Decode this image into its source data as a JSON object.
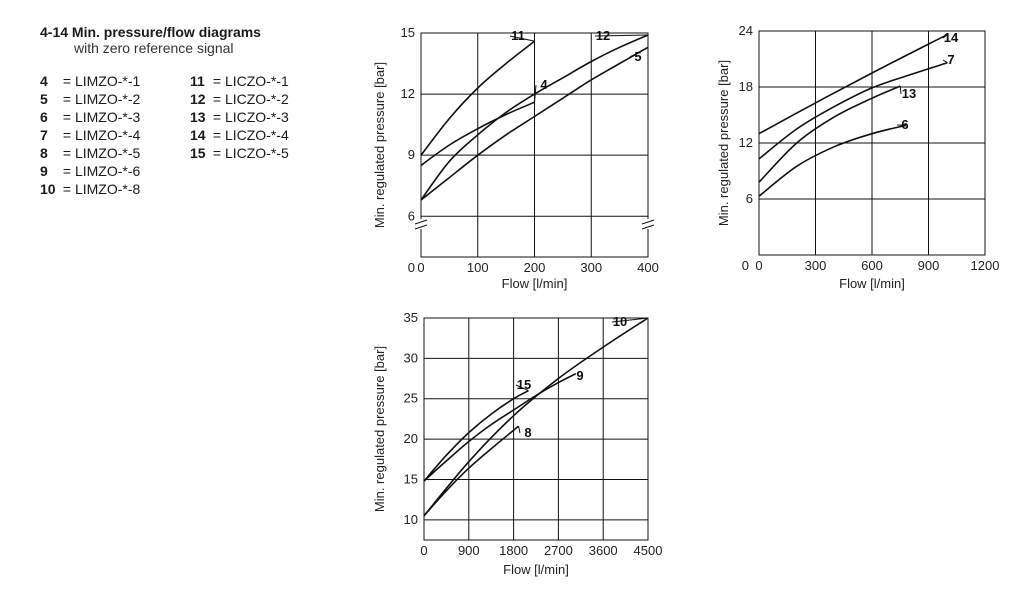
{
  "header": {
    "title": "4-14 Min. pressure/flow diagrams",
    "subtitle": "with zero reference signal"
  },
  "legend": {
    "items": [
      {
        "num": "4",
        "label": "= LIMZO-*-1"
      },
      {
        "num": "11",
        "label": "= LICZO-*-1"
      },
      {
        "num": "5",
        "label": "= LIMZO-*-2"
      },
      {
        "num": "12",
        "label": "= LICZO-*-2"
      },
      {
        "num": "6",
        "label": "= LIMZO-*-3"
      },
      {
        "num": "13",
        "label": "= LICZO-*-3"
      },
      {
        "num": "7",
        "label": "= LIMZO-*-4"
      },
      {
        "num": "14",
        "label": "= LICZO-*-4"
      },
      {
        "num": "8",
        "label": "= LIMZO-*-5"
      },
      {
        "num": "15",
        "label": "= LICZO-*-5"
      },
      {
        "num": "9",
        "label": "= LIMZO-*-6"
      },
      {
        "num": "",
        "label": ""
      },
      {
        "num": "10",
        "label": "= LIMZO-*-8"
      }
    ]
  },
  "chart_data": [
    {
      "type": "line",
      "xlabel": "Flow [l/min]",
      "ylabel": "Min. regulated pressure [bar]",
      "xlim": [
        0,
        400
      ],
      "ylim": [
        6,
        15
      ],
      "xticks": [
        "0",
        "100",
        "200",
        "300",
        "400"
      ],
      "yticks": [
        "6",
        "9",
        "12",
        "15"
      ],
      "axis_break": true,
      "grid": true,
      "series": [
        {
          "name": "11",
          "x": [
            0,
            50,
            100,
            150,
            200
          ],
          "y": [
            9.0,
            10.8,
            12.3,
            13.5,
            14.6
          ]
        },
        {
          "name": "4",
          "x": [
            0,
            50,
            100,
            150,
            200
          ],
          "y": [
            8.5,
            9.5,
            10.3,
            11.0,
            11.6
          ]
        },
        {
          "name": "12",
          "x": [
            0,
            50,
            100,
            150,
            200,
            250,
            300,
            350,
            400
          ],
          "y": [
            6.8,
            8.7,
            10.0,
            11.1,
            12.0,
            12.8,
            13.6,
            14.3,
            14.9
          ]
        },
        {
          "name": "5",
          "x": [
            0,
            50,
            100,
            150,
            200,
            250,
            300,
            350,
            400
          ],
          "y": [
            6.8,
            7.9,
            9.0,
            10.0,
            10.9,
            11.8,
            12.7,
            13.5,
            14.3
          ]
        }
      ]
    },
    {
      "type": "line",
      "xlabel": "Flow [l/min]",
      "ylabel": "Min. regulated pressure [bar]",
      "xlim": [
        0,
        1200
      ],
      "ylim": [
        0,
        24
      ],
      "xticks": [
        "0",
        "300",
        "600",
        "900",
        "1200"
      ],
      "yticks": [
        "6",
        "12",
        "18",
        "24"
      ],
      "grid": true,
      "series": [
        {
          "name": "14",
          "x": [
            0,
            300,
            600,
            900,
            1000
          ],
          "y": [
            13.0,
            16.3,
            19.5,
            22.6,
            23.6
          ]
        },
        {
          "name": "7",
          "x": [
            0,
            200,
            400,
            600,
            800,
            1000
          ],
          "y": [
            10.3,
            13.5,
            15.9,
            17.9,
            19.3,
            20.6
          ]
        },
        {
          "name": "13",
          "x": [
            0,
            200,
            400,
            600,
            750
          ],
          "y": [
            7.8,
            12.0,
            14.8,
            16.8,
            18.1
          ]
        },
        {
          "name": "6",
          "x": [
            0,
            200,
            400,
            600,
            780
          ],
          "y": [
            6.3,
            9.5,
            11.6,
            13.0,
            13.9
          ]
        }
      ]
    },
    {
      "type": "line",
      "xlabel": "Flow [l/min]",
      "ylabel": "Min. regulated pressure [bar]",
      "xlim": [
        0,
        4500
      ],
      "ylim": [
        7.5,
        35
      ],
      "xticks": [
        "0",
        "900",
        "1800",
        "2700",
        "3600",
        "4500"
      ],
      "yticks": [
        "10",
        "15",
        "20",
        "25",
        "30",
        "35"
      ],
      "grid": true,
      "series": [
        {
          "name": "10",
          "x": [
            0,
            900,
            1800,
            2700,
            3600,
            4500
          ],
          "y": [
            10.5,
            17.2,
            22.9,
            27.5,
            31.4,
            35.0
          ]
        },
        {
          "name": "15",
          "x": [
            0,
            450,
            900,
            1350,
            1800,
            2100
          ],
          "y": [
            14.8,
            18.0,
            20.8,
            23.1,
            25.0,
            26.0
          ]
        },
        {
          "name": "9",
          "x": [
            0,
            450,
            900,
            1350,
            1800,
            2250,
            2700,
            3050
          ],
          "y": [
            14.8,
            17.3,
            19.7,
            21.8,
            23.6,
            25.4,
            27.0,
            28.1
          ]
        },
        {
          "name": "8",
          "x": [
            0,
            450,
            900,
            1350,
            1800,
            1900
          ],
          "y": [
            10.5,
            13.6,
            16.4,
            18.8,
            21.1,
            21.6
          ]
        }
      ]
    }
  ]
}
